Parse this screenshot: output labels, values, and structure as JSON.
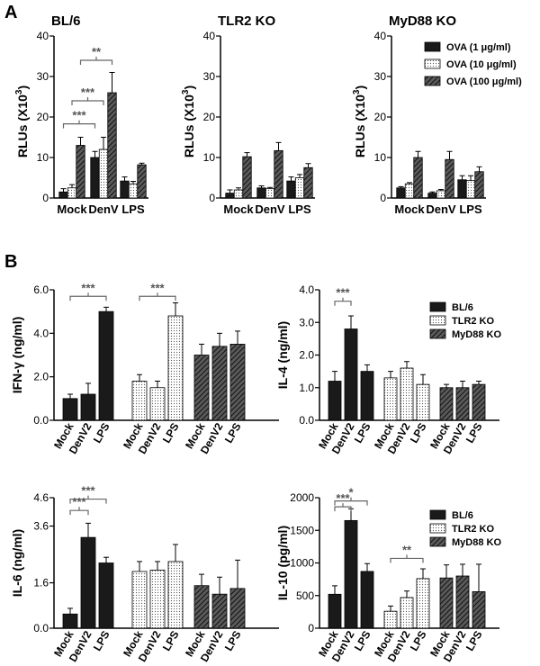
{
  "figure": {
    "panel_A_label": "A",
    "panel_B_label": "B"
  },
  "colors": {
    "solid": "#1a1a1a",
    "dotted_fill": "#ffffff",
    "hatched": "#4a4a4a",
    "axis": "#000000",
    "bracket": "#666666"
  },
  "chart_data": [
    {
      "id": "A1",
      "type": "bar",
      "title": "BL/6",
      "ylabel": "RLUs (X10",
      "ylabel_sup": "3",
      "ylabel_end": ")",
      "ylim": [
        0,
        40
      ],
      "yticks": [
        "0",
        "10",
        "20",
        "30",
        "40"
      ],
      "categories": [
        "Mock",
        "DenV",
        "LPS"
      ],
      "series": [
        {
          "name": "OVA (1 μg/ml)",
          "style": "solid",
          "values": [
            1.5,
            10,
            4.2
          ],
          "errors": [
            0.8,
            1.5,
            1.0
          ]
        },
        {
          "name": "OVA (10 μg/ml)",
          "style": "dotted",
          "values": [
            2.5,
            12,
            3.5
          ],
          "errors": [
            0.8,
            3.0,
            0.6
          ]
        },
        {
          "name": "OVA (100 μg/ml)",
          "style": "hatched",
          "values": [
            13,
            26,
            8.2
          ],
          "errors": [
            2.0,
            5.0,
            0.4
          ]
        }
      ],
      "significance": [
        "***",
        "***",
        "**"
      ]
    },
    {
      "id": "A2",
      "type": "bar",
      "title": "TLR2 KO",
      "ylabel": "RLUs (X10",
      "ylabel_sup": "3",
      "ylabel_end": ")",
      "ylim": [
        0,
        40
      ],
      "yticks": [
        "0",
        "10",
        "20",
        "30",
        "40"
      ],
      "categories": [
        "Mock",
        "DenV",
        "LPS"
      ],
      "series": [
        {
          "name": "OVA (1 μg/ml)",
          "style": "solid",
          "values": [
            1.2,
            2.5,
            4.2
          ],
          "errors": [
            0.8,
            0.5,
            1.0
          ]
        },
        {
          "name": "OVA (10 μg/ml)",
          "style": "dotted",
          "values": [
            2.0,
            2.3,
            5.0
          ],
          "errors": [
            0.5,
            0.3,
            0.8
          ]
        },
        {
          "name": "OVA (100 μg/ml)",
          "style": "hatched",
          "values": [
            10.2,
            11.7,
            7.5
          ],
          "errors": [
            1.0,
            2.0,
            1.0
          ]
        }
      ],
      "significance": []
    },
    {
      "id": "A3",
      "type": "bar",
      "title": "MyD88 KO",
      "ylabel": "RLUs (X10",
      "ylabel_sup": "3",
      "ylabel_end": ")",
      "ylim": [
        0,
        40
      ],
      "yticks": [
        "0",
        "10",
        "20",
        "30",
        "40"
      ],
      "categories": [
        "Mock",
        "DenV",
        "LPS"
      ],
      "series": [
        {
          "name": "OVA (1 μg/ml)",
          "style": "solid",
          "values": [
            2.5,
            1.2,
            4.5
          ],
          "errors": [
            0.3,
            0.3,
            1.0
          ]
        },
        {
          "name": "OVA (10 μg/ml)",
          "style": "dotted",
          "values": [
            3.5,
            1.8,
            4.3
          ],
          "errors": [
            0.3,
            0.3,
            1.2
          ]
        },
        {
          "name": "OVA (100 μg/ml)",
          "style": "hatched",
          "values": [
            10,
            9.5,
            6.5
          ],
          "errors": [
            1.5,
            2.0,
            1.2
          ]
        }
      ],
      "legend": [
        "OVA (1 μg/ml)",
        "OVA (10 μg/ml)",
        "OVA (100 μg/ml)"
      ],
      "significance": []
    },
    {
      "id": "B1",
      "type": "bar",
      "ylabel": "IFN-γ (ng/ml)",
      "ylim": [
        0,
        6
      ],
      "yticks": [
        "0.0",
        "2.0",
        "4.0",
        "6.0"
      ],
      "groups": [
        {
          "name": "BL/6",
          "style": "solid",
          "categories": [
            "Mock",
            "DenV2",
            "LPS"
          ],
          "values": [
            1.0,
            1.2,
            5.0
          ],
          "errors": [
            0.2,
            0.5,
            0.2
          ]
        },
        {
          "name": "TLR2 KO",
          "style": "dotted",
          "categories": [
            "Mock",
            "DenV2",
            "LPS"
          ],
          "values": [
            1.8,
            1.5,
            4.8
          ],
          "errors": [
            0.3,
            0.3,
            0.6
          ]
        },
        {
          "name": "MyD88 KO",
          "style": "hatched",
          "categories": [
            "Mock",
            "DenV2",
            "LPS"
          ],
          "values": [
            3.0,
            3.4,
            3.5
          ],
          "errors": [
            0.5,
            0.6,
            0.6
          ]
        }
      ],
      "significance": [
        "***",
        "***"
      ]
    },
    {
      "id": "B2",
      "type": "bar",
      "ylabel": "IL-4 (ng/ml)",
      "ylim": [
        0,
        4
      ],
      "yticks": [
        "0.0",
        "1.0",
        "2.0",
        "3.0",
        "4.0"
      ],
      "groups": [
        {
          "name": "BL/6",
          "style": "solid",
          "categories": [
            "Mock",
            "DenV2",
            "LPS"
          ],
          "values": [
            1.2,
            2.8,
            1.5
          ],
          "errors": [
            0.3,
            0.4,
            0.2
          ]
        },
        {
          "name": "TLR2 KO",
          "style": "dotted",
          "categories": [
            "Mock",
            "DenV2",
            "LPS"
          ],
          "values": [
            1.3,
            1.6,
            1.1
          ],
          "errors": [
            0.2,
            0.2,
            0.3
          ]
        },
        {
          "name": "MyD88 KO",
          "style": "hatched",
          "categories": [
            "Mock",
            "DenV2",
            "LPS"
          ],
          "values": [
            1.0,
            1.0,
            1.1
          ],
          "errors": [
            0.1,
            0.2,
            0.1
          ]
        }
      ],
      "legend": [
        "BL/6",
        "TLR2 KO",
        "MyD88 KO"
      ],
      "significance": [
        "***"
      ]
    },
    {
      "id": "B3",
      "type": "bar",
      "ylabel": "IL-6 (ng/ml)",
      "ylim": [
        0,
        4.6
      ],
      "yticks": [
        "0.0",
        "1.6",
        "3.6",
        "4.6"
      ],
      "groups": [
        {
          "name": "BL/6",
          "style": "solid",
          "categories": [
            "Mock",
            "DenV2",
            "LPS"
          ],
          "values": [
            0.5,
            3.2,
            2.3
          ],
          "errors": [
            0.2,
            0.5,
            0.2
          ]
        },
        {
          "name": "TLR2 KO",
          "style": "dotted",
          "categories": [
            "Mock",
            "DenV2",
            "LPS"
          ],
          "values": [
            2.0,
            2.05,
            2.35
          ],
          "errors": [
            0.35,
            0.3,
            0.6
          ]
        },
        {
          "name": "MyD88 KO",
          "style": "hatched",
          "categories": [
            "Mock",
            "DenV2",
            "LPS"
          ],
          "values": [
            1.5,
            1.2,
            1.4
          ],
          "errors": [
            0.4,
            0.6,
            1.0
          ]
        }
      ],
      "significance": [
        "***",
        "***"
      ]
    },
    {
      "id": "B4",
      "type": "bar",
      "ylabel": "IL-10 (pg/ml)",
      "ylim": [
        0,
        2000
      ],
      "yticks": [
        "0",
        "500",
        "1000",
        "1500",
        "2000"
      ],
      "groups": [
        {
          "name": "BL/6",
          "style": "solid",
          "categories": [
            "Mock",
            "DenV2",
            "LPS"
          ],
          "values": [
            520,
            1650,
            870
          ],
          "errors": [
            130,
            180,
            120
          ]
        },
        {
          "name": "TLR2 KO",
          "style": "dotted",
          "categories": [
            "Mock",
            "DenV2",
            "LPS"
          ],
          "values": [
            260,
            470,
            760
          ],
          "errors": [
            80,
            100,
            150
          ]
        },
        {
          "name": "MyD88 KO",
          "style": "hatched",
          "categories": [
            "Mock",
            "DenV2",
            "LPS"
          ],
          "values": [
            770,
            800,
            560
          ],
          "errors": [
            200,
            180,
            420
          ]
        }
      ],
      "legend": [
        "BL/6",
        "TLR2 KO",
        "MyD88 KO"
      ],
      "significance": [
        "*",
        "***",
        "**"
      ]
    }
  ]
}
